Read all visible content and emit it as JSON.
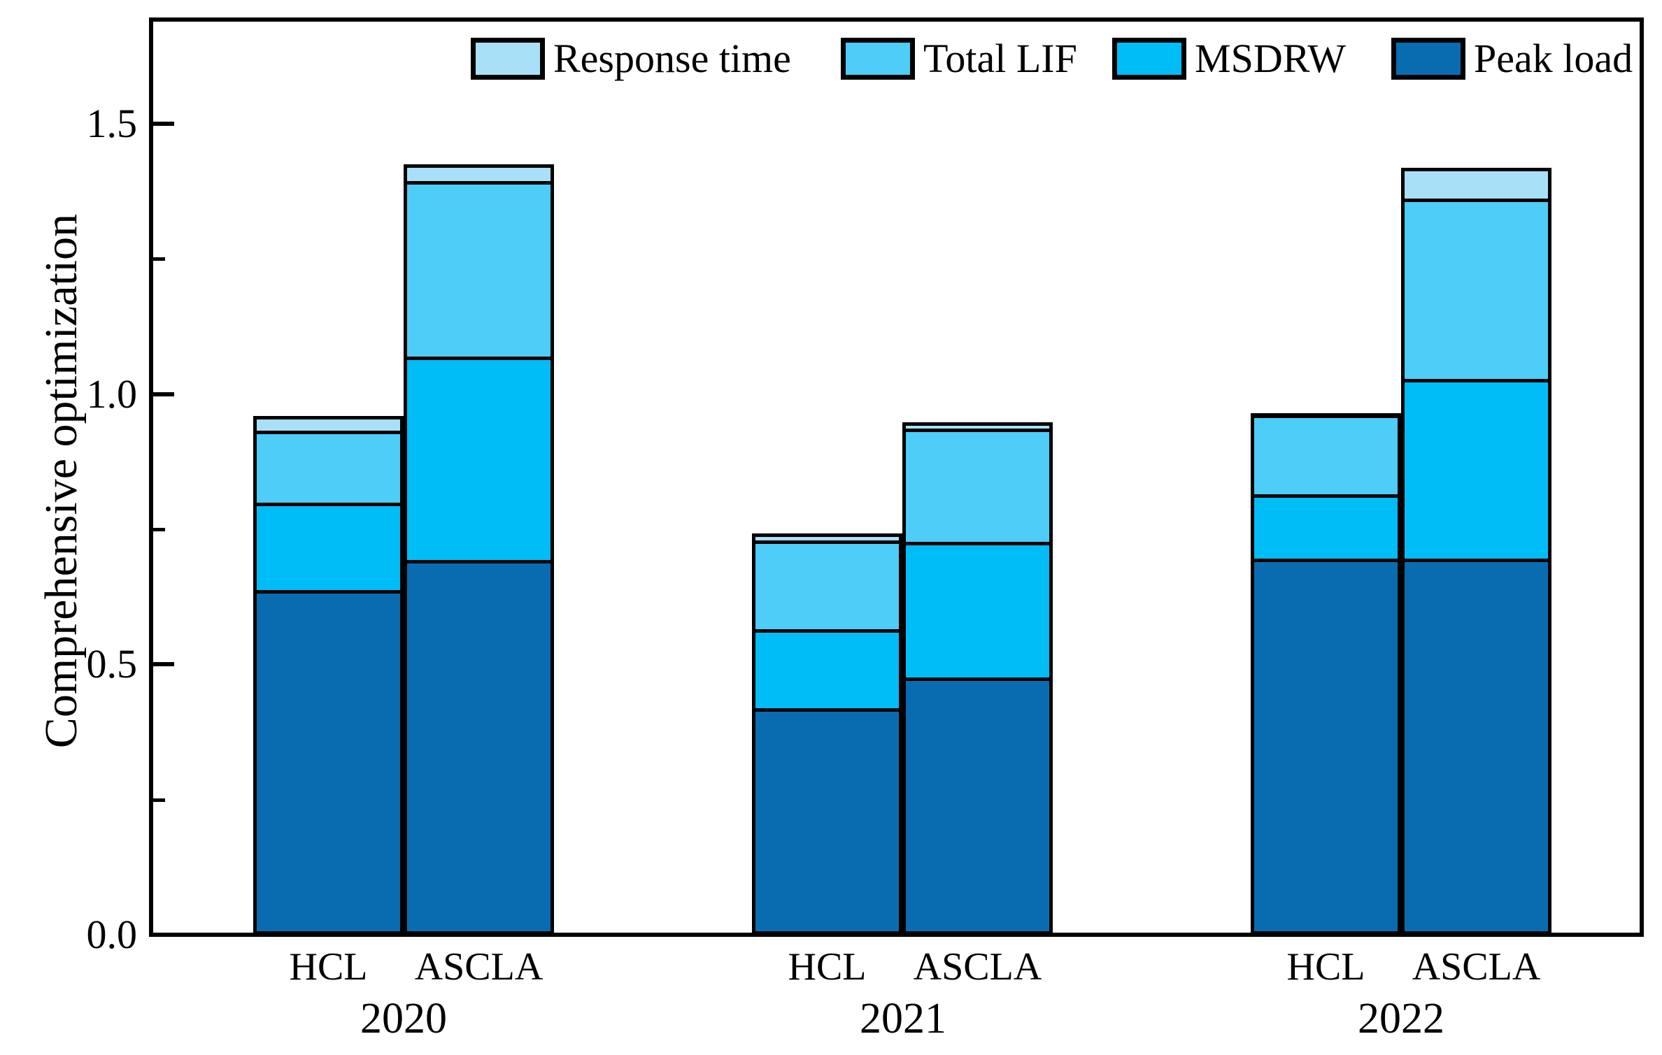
{
  "figure": {
    "background": "#ffffff",
    "axis_color": "#000000"
  },
  "legend": {
    "items": [
      {
        "label": "Response time",
        "color": "#A8E1F7"
      },
      {
        "label": "Total LIF",
        "color": "#4DCDF7"
      },
      {
        "label": "MSDRW",
        "color": "#00BDF7"
      },
      {
        "label": "Peak load",
        "color": "#0A6CB0"
      }
    ]
  },
  "chart_data": {
    "type": "bar",
    "stacked": true,
    "title": "",
    "xlabel": "",
    "ylabel": "Comprehensive optimization",
    "ylim": [
      0,
      1.7
    ],
    "grid": false,
    "legend_position": "top",
    "y_major_ticks": [
      {
        "label": "0.0",
        "value": 0.0
      },
      {
        "label": "0.5",
        "value": 0.5
      },
      {
        "label": "1.0",
        "value": 1.0
      },
      {
        "label": "1.5",
        "value": 1.5
      }
    ],
    "y_minor_ticks": [
      0.25,
      0.75,
      1.25
    ],
    "groups": [
      "2020",
      "2021",
      "2022"
    ],
    "bar_labels": [
      "HCL",
      "ASCLA"
    ],
    "series_order_bottom_to_top": [
      "Peak load",
      "MSDRW",
      "Total LIF",
      "Response time"
    ],
    "series_colors": {
      "Peak load": "#0A6CB0",
      "MSDRW": "#00BDF7",
      "Total LIF": "#4DCDF7",
      "Response time": "#A8E1F7"
    },
    "bars": [
      {
        "group": "2020",
        "label": "HCL",
        "segments": {
          "Peak load": 0.635,
          "MSDRW": 0.162,
          "Total LIF": 0.133,
          "Response time": 0.03
        },
        "total": 0.96
      },
      {
        "group": "2020",
        "label": "ASCLA",
        "segments": {
          "Peak load": 0.69,
          "MSDRW": 0.377,
          "Total LIF": 0.325,
          "Response time": 0.033
        },
        "total": 1.425
      },
      {
        "group": "2021",
        "label": "HCL",
        "segments": {
          "Peak load": 0.416,
          "MSDRW": 0.146,
          "Total LIF": 0.165,
          "Response time": 0.015
        },
        "total": 0.742
      },
      {
        "group": "2021",
        "label": "ASCLA",
        "segments": {
          "Peak load": 0.473,
          "MSDRW": 0.251,
          "Total LIF": 0.209,
          "Response time": 0.015
        },
        "total": 0.948
      },
      {
        "group": "2022",
        "label": "HCL",
        "segments": {
          "Peak load": 0.693,
          "MSDRW": 0.119,
          "Total LIF": 0.148,
          "Response time": 0.005
        },
        "total": 0.965
      },
      {
        "group": "2022",
        "label": "ASCLA",
        "segments": {
          "Peak load": 0.693,
          "MSDRW": 0.332,
          "Total LIF": 0.334,
          "Response time": 0.06
        },
        "total": 1.419
      }
    ]
  }
}
